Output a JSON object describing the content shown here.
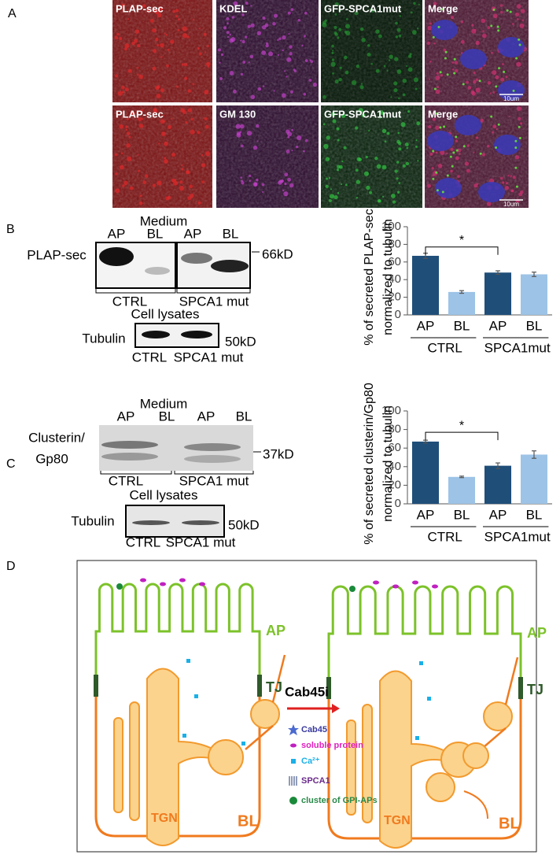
{
  "panel_labels": [
    "A",
    "B",
    "C",
    "D"
  ],
  "panel_a": {
    "rows": [
      {
        "channels": [
          "PLAP-sec",
          "KDEL",
          "GFP-SPCA1mut",
          "Merge"
        ],
        "scale_bar": "10um"
      },
      {
        "channels": [
          "PLAP-sec",
          "GM 130",
          "GFP-SPCA1mut",
          "Merge"
        ],
        "scale_bar": "10um"
      }
    ]
  },
  "panel_b_blot": {
    "medium": "Medium",
    "lanes": [
      "AP",
      "BL",
      "AP",
      "BL"
    ],
    "protein": "PLAP-sec",
    "marker": "66kD",
    "groups": [
      "CTRL",
      "SPCA1 mut"
    ],
    "lysates": "Cell lysates",
    "loading": "Tubulin",
    "loading_marker": "50kD",
    "lysate_groups": [
      "CTRL",
      "SPCA1 mut"
    ]
  },
  "panel_c_blot": {
    "medium": "Medium",
    "lanes": [
      "AP",
      "BL",
      "AP",
      "BL"
    ],
    "protein_lines": [
      "Clusterin/",
      "Gp80"
    ],
    "marker": "37kD",
    "groups": [
      "CTRL",
      "SPCA1 mut"
    ],
    "lysates": "Cell lysates",
    "loading": "Tubulin",
    "loading_marker": "50kD",
    "lysate_groups": [
      "CTRL",
      "SPCA1 mut"
    ]
  },
  "chart_data": [
    {
      "type": "bar",
      "y_label_lines": [
        "% of secreted PLAP-sec",
        "normalized to tubulin"
      ],
      "categories": [
        "AP",
        "BL",
        "AP",
        "BL"
      ],
      "groups": [
        "CTRL",
        "SPCA1mut"
      ],
      "values": [
        67,
        26,
        48,
        46
      ],
      "errors": [
        3,
        1.5,
        2,
        2.5
      ],
      "colors": [
        "#1f4e79",
        "#9dc3e6",
        "#1f4e79",
        "#9dc3e6"
      ],
      "significance": "*",
      "ylim": [
        0,
        100
      ],
      "yticks": [
        0,
        20,
        40,
        60,
        80,
        100
      ]
    },
    {
      "type": "bar",
      "y_label_lines": [
        "% of secreted clusterin/Gp80",
        "normalized to tubulin"
      ],
      "categories": [
        "AP",
        "BL",
        "AP",
        "BL"
      ],
      "groups": [
        "CTRL",
        "SPCA1mut"
      ],
      "values": [
        67,
        29,
        41,
        53
      ],
      "errors": [
        1.5,
        0.8,
        3,
        4
      ],
      "colors": [
        "#1f4e79",
        "#9dc3e6",
        "#1f4e79",
        "#9dc3e6"
      ],
      "significance": "*",
      "ylim": [
        0,
        100
      ],
      "yticks": [
        0,
        20,
        40,
        60,
        80,
        100
      ]
    }
  ],
  "panel_d": {
    "apical": "AP",
    "junction": "TJ",
    "basolateral": "BL",
    "golgi": "TGN",
    "treatment": "Cab45i",
    "legend": [
      "Cab45",
      "soluble protein",
      "Ca²⁺",
      "SPCA1",
      "cluster of GPI-APs"
    ]
  }
}
